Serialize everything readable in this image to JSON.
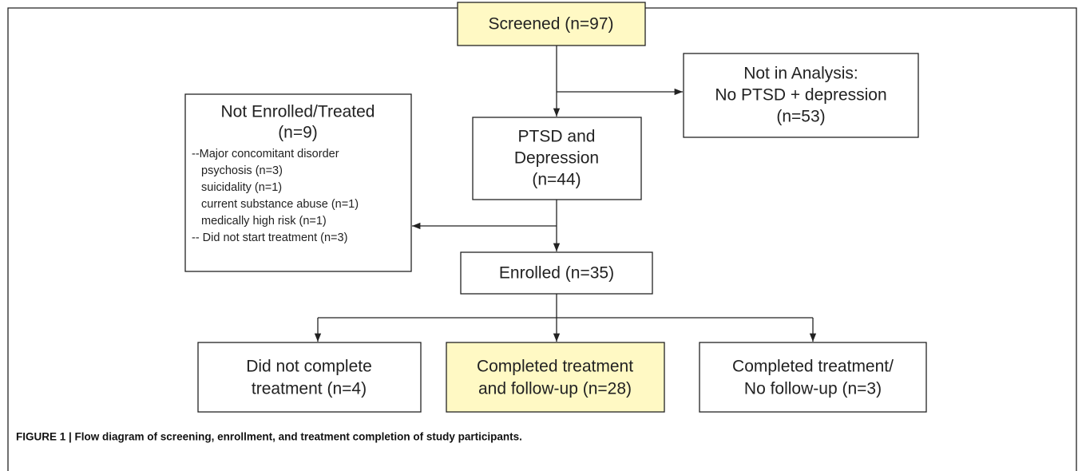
{
  "nodes": [
    {
      "lines": [
        "Screened (n=97)"
      ]
    },
    {
      "lines": [
        "Not in Analysis:",
        "No PTSD + depression",
        "(n=53)"
      ]
    },
    {
      "lines": [
        "PTSD and",
        "Depression",
        "(n=44)"
      ]
    },
    {
      "lines": [
        "Not Enrolled/Treated",
        "(n=9)"
      ],
      "details": [
        "--Major concomitant disorder",
        "psychosis (n=3)",
        "suicidality (n=1)",
        "current substance abuse (n=1)",
        "medically high risk (n=1)",
        "-- Did not start treatment (n=3)"
      ]
    },
    {
      "lines": [
        "Enrolled (n=35)"
      ]
    },
    {
      "lines": [
        "Did not complete",
        "treatment (n=4)"
      ]
    },
    {
      "lines": [
        "Completed treatment",
        "and follow-up (n=28)"
      ]
    },
    {
      "lines": [
        "Completed treatment/",
        "No follow-up (n=3)"
      ]
    }
  ],
  "caption": "FIGURE 1 | Flow diagram of screening, enrollment, and treatment completion of study participants."
}
